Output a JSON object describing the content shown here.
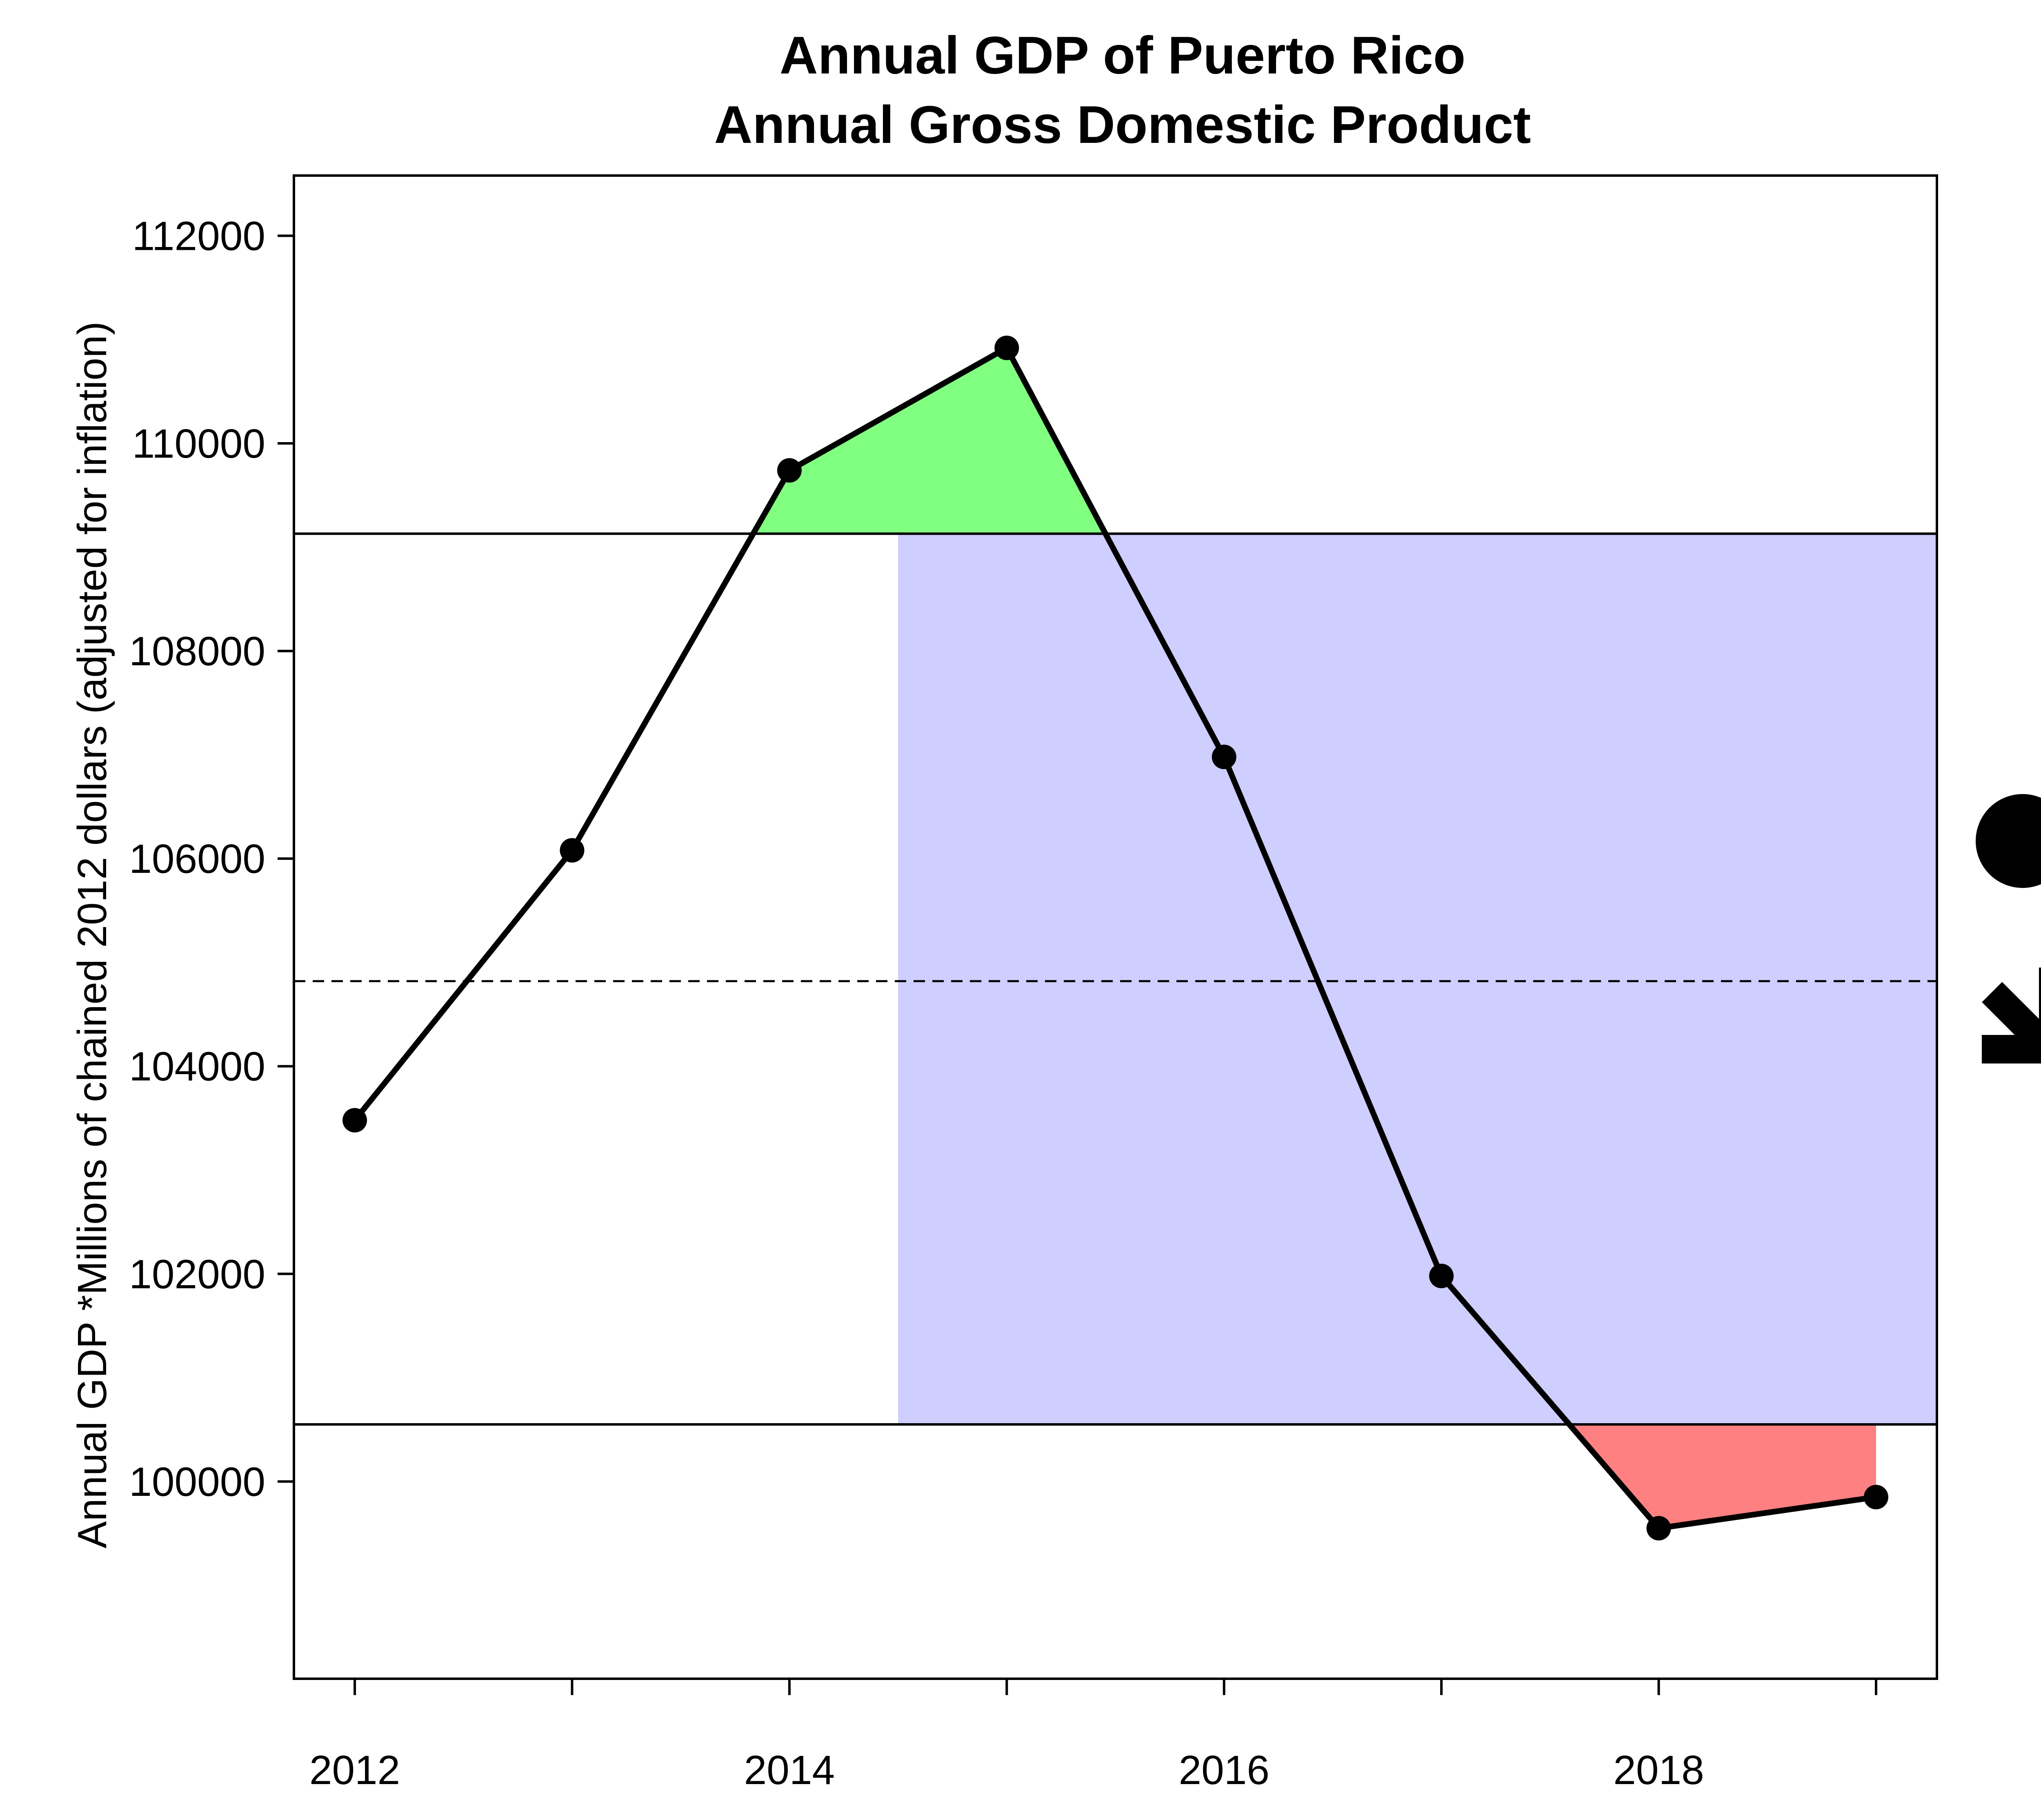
{
  "chart_data": {
    "type": "line",
    "title": "Annual GDP of Puerto Rico",
    "subtitle": "Annual Gross Domestic Product",
    "xlabel": "",
    "ylabel": "Annual GDP *Millions of chained 2012 dollars (adjusted for inflation)",
    "x": [
      2012,
      2013,
      2014,
      2015,
      2016,
      2017,
      2018,
      2019
    ],
    "values": [
      103480,
      106080,
      109740,
      110920,
      106980,
      101980,
      99550,
      99850
    ],
    "xlim": [
      2011.72,
      2019.28
    ],
    "ylim": [
      98100,
      112580
    ],
    "x_ticks": [
      2012,
      2013,
      2014,
      2015,
      2016,
      2017,
      2018,
      2019
    ],
    "x_tick_labels": [
      "2012",
      "2014",
      "2016",
      "2018"
    ],
    "x_tick_label_positions": [
      2012,
      2014,
      2016,
      2018
    ],
    "y_ticks": [
      100000,
      102000,
      104000,
      106000,
      108000,
      110000,
      112000
    ],
    "y_tick_labels": [
      "100000",
      "102000",
      "104000",
      "106000",
      "108000",
      "110000",
      "112000"
    ],
    "upper_threshold": 109130,
    "lower_threshold": 100550,
    "mean_line": 104820,
    "highlight_region": {
      "x_start": 2014.5,
      "x_end": 2019.28,
      "y_min": 100550,
      "y_max": 109130
    },
    "colors": {
      "line": "#000000",
      "above_fill": "#80ff80",
      "below_fill": "#ff8080",
      "region_fill": "#ceceff"
    },
    "trend_indicator": {
      "symbol": "circle-icon",
      "direction": "down-right-arrow-icon"
    }
  }
}
